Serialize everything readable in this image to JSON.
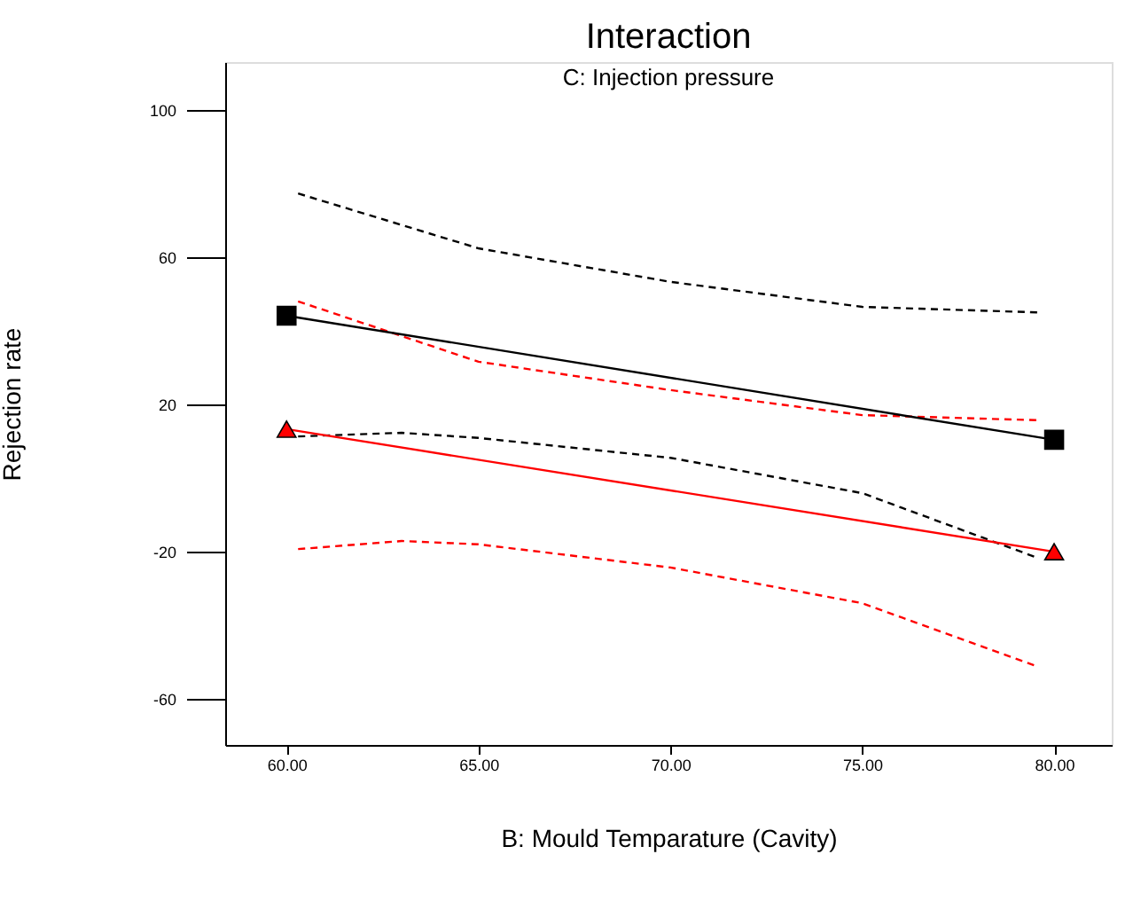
{
  "chart_data": {
    "type": "line",
    "title": "Interaction",
    "subtitle": "C: Injection pressure",
    "xlabel": "B: Mould Temparature (Cavity)",
    "ylabel": "Rejection rate",
    "xlim": [
      58.4,
      81.5
    ],
    "ylim": [
      -72.5,
      113
    ],
    "xticks": [
      {
        "value": 60,
        "label": "60.00"
      },
      {
        "value": 65,
        "label": "65.00"
      },
      {
        "value": 70,
        "label": "70.00"
      },
      {
        "value": 75,
        "label": "75.00"
      },
      {
        "value": 80,
        "label": "80.00"
      }
    ],
    "yticks": [
      -60,
      -20,
      20,
      60,
      100
    ],
    "grid": false,
    "series": [
      {
        "color": "#ff0000",
        "x": [
          60.3,
          63,
          65,
          70,
          75,
          79.6
        ],
        "values": [
          -19.3,
          -17.1,
          -18,
          -24.3,
          -34,
          -51.3
        ],
        "line_style": "dashed",
        "marker": "none"
      },
      {
        "color": "#000000",
        "x": [
          60.3,
          63,
          65,
          70,
          75,
          79.6
        ],
        "values": [
          11.3,
          12.3,
          10.9,
          5.5,
          -4.1,
          -21.8
        ],
        "line_style": "dashed",
        "marker": "none"
      },
      {
        "color": "#ff0000",
        "x": [
          60.3,
          65,
          70,
          75,
          79.6
        ],
        "values": [
          48,
          31.6,
          23.9,
          17.1,
          15.7
        ],
        "line_style": "dashed",
        "marker": "none"
      },
      {
        "color": "#000000",
        "x": [
          60.3,
          65,
          70,
          75,
          79.6
        ],
        "values": [
          77.3,
          62.4,
          53.3,
          46.5,
          45
        ],
        "line_style": "dashed",
        "marker": "none"
      },
      {
        "color": "#ff0000",
        "x": [
          60,
          80
        ],
        "values": [
          13.3,
          -20
        ],
        "line_style": "solid",
        "marker": "triangle"
      },
      {
        "color": "#000000",
        "x": [
          60,
          80
        ],
        "values": [
          44.1,
          10.4
        ],
        "line_style": "solid",
        "marker": "square"
      }
    ]
  }
}
